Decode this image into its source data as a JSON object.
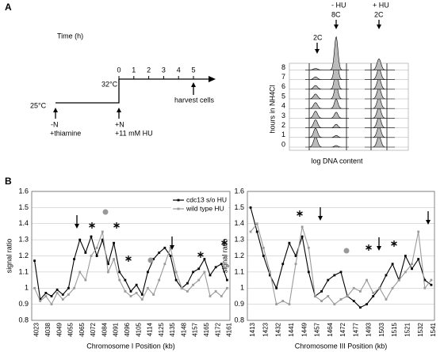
{
  "panel_a": {
    "label": "A",
    "time_label": "Time (h)",
    "time_ticks": [
      0,
      1,
      2,
      3,
      4,
      5
    ],
    "temp_high": "32°C",
    "temp_low": "25°C",
    "harvest": "harvest cells",
    "start_lines": [
      "-N",
      "+thiamine"
    ],
    "shift_lines": [
      "+N",
      "+11 mM HU"
    ],
    "facs": {
      "conditions": [
        "- HU",
        "+ HU"
      ],
      "peak_labels": [
        "8C",
        "2C",
        "2C"
      ],
      "y_label": "hours in NH4Cl",
      "yticks": [
        0,
        1,
        2,
        3,
        4,
        5,
        6,
        7,
        8
      ],
      "x_label": "log DNA content"
    }
  },
  "panel_b": {
    "label": "B"
  },
  "chart_data": [
    {
      "type": "line",
      "y_label": "signal ratio",
      "x_label": "Chromosome I Position (kb)",
      "categories": [
        "4023",
        null,
        "4038",
        null,
        "4049",
        null,
        "4055",
        null,
        "4065",
        null,
        "4072",
        null,
        "4084",
        null,
        "4091",
        null,
        "4096",
        null,
        "4105",
        null,
        "4114",
        null,
        "4125",
        null,
        "4135",
        null,
        "4148",
        null,
        "4157",
        null,
        "4165",
        null,
        "4172",
        null,
        "4161"
      ],
      "series": [
        {
          "name": "cdc13 s/o HU",
          "color": "#000000",
          "values": [
            1.17,
            0.93,
            0.97,
            0.95,
            0.99,
            0.96,
            1.0,
            1.18,
            1.3,
            1.22,
            1.32,
            1.2,
            1.3,
            1.15,
            1.28,
            1.1,
            1.05,
            0.98,
            1.02,
            0.96,
            1.1,
            1.18,
            1.22,
            1.25,
            1.2,
            1.05,
            1.0,
            1.03,
            1.1,
            1.12,
            1.18,
            1.08,
            1.13,
            1.15,
            1.05
          ]
        },
        {
          "name": "wild type HU",
          "color": "#9a9a9a",
          "values": [
            1.0,
            0.92,
            0.95,
            0.9,
            0.97,
            0.93,
            0.96,
            1.0,
            1.1,
            1.05,
            1.2,
            1.25,
            1.35,
            1.1,
            1.18,
            1.05,
            0.98,
            0.95,
            0.97,
            0.93,
            1.0,
            0.96,
            1.05,
            1.15,
            1.25,
            1.1,
            1.0,
            0.98,
            1.02,
            1.05,
            1.1,
            0.95,
            0.98,
            0.95,
            1.0
          ]
        }
      ],
      "ylim": [
        0.8,
        1.6
      ],
      "yticks": [
        0.8,
        0.9,
        1,
        1.1,
        1.2,
        1.3,
        1.4,
        1.5,
        1.6
      ],
      "grid": true,
      "legend": "upper right"
    },
    {
      "type": "line",
      "y_label": "signal ratio",
      "x_label": "Chromosome III Position (kb)",
      "categories": [
        "1413",
        null,
        "1423",
        null,
        "1432",
        null,
        "1441",
        null,
        "1449",
        null,
        "1457",
        null,
        "1464",
        null,
        "1472",
        null,
        "1477",
        null,
        "1493",
        null,
        "1503",
        null,
        "1515",
        null,
        "1521",
        null,
        "1532",
        null,
        "1541"
      ],
      "series": [
        {
          "color": "#000000",
          "values": [
            1.5,
            1.35,
            1.2,
            1.08,
            1.0,
            1.15,
            1.28,
            1.2,
            1.32,
            1.1,
            0.95,
            0.98,
            1.05,
            1.08,
            1.1,
            0.95,
            0.92,
            0.88,
            0.9,
            0.95,
            1.0,
            1.08,
            1.15,
            1.05,
            1.2,
            1.12,
            1.18,
            1.05,
            1.02
          ]
        },
        {
          "color": "#9a9a9a",
          "values": [
            1.35,
            1.4,
            1.25,
            1.1,
            0.9,
            0.92,
            0.9,
            1.15,
            1.38,
            1.25,
            0.95,
            0.92,
            0.95,
            0.9,
            0.93,
            0.95,
            1.0,
            0.98,
            1.05,
            0.97,
            1.0,
            0.93,
            1.0,
            1.05,
            1.1,
            1.15,
            1.35,
            1.0,
            1.05
          ]
        }
      ],
      "ylim": [
        0.8,
        1.6
      ],
      "yticks": [
        0.8,
        0.9,
        1,
        1.1,
        1.2,
        1.3,
        1.4,
        1.5,
        1.6
      ],
      "grid": true
    }
  ]
}
